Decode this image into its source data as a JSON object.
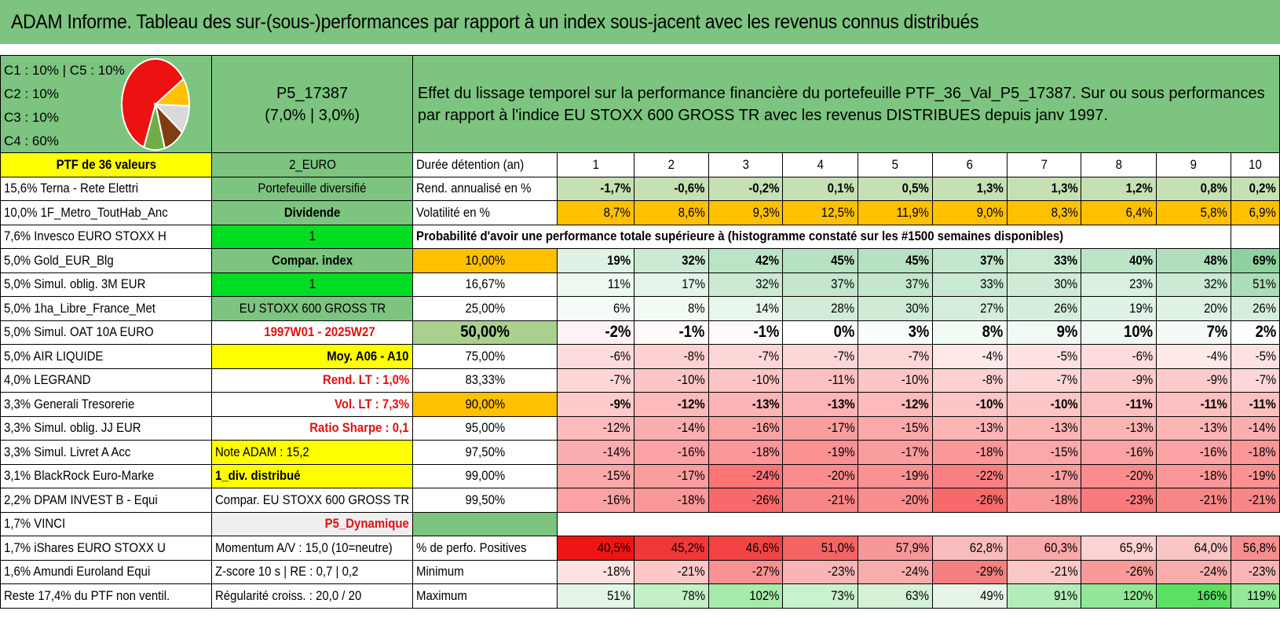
{
  "title": "ADAM Informe. Tableau des sur-(sous-)performances par rapport à un index sous-jacent avec les revenus connus distribués",
  "allocation": [
    "C1 : 10% | C5 : 10%",
    "C2 : 10%",
    "C3 : 10%",
    "C4 : 60%"
  ],
  "pie": [
    {
      "label": "C4",
      "value": 60,
      "color": "#ee1111"
    },
    {
      "label": "C1",
      "value": 10,
      "color": "#ffc000"
    },
    {
      "label": "C5",
      "value": 10,
      "color": "#d9d9d9"
    },
    {
      "label": "C2",
      "value": 10,
      "color": "#7f3d12"
    },
    {
      "label": "C3",
      "value": 10,
      "color": "#70ad47"
    }
  ],
  "portfolio": {
    "name": "P5_17387",
    "params": "(7,0% | 3,0%)"
  },
  "effet_text": "Effet du lissage temporel sur la performance financière du portefeuille PTF_36_Val_P5_17387. Sur ou sous performances par rapport à l'indice EU STOXX 600 GROSS TR avec les revenus DISTRIBUES depuis janv 1997.",
  "ptf_label": "PTF de 36 valeurs",
  "currency": "2_EURO",
  "duree_label": "Durée détention (an)",
  "years": [
    "1",
    "2",
    "3",
    "4",
    "5",
    "6",
    "7",
    "8",
    "9",
    "10"
  ],
  "holdings": [
    "15,6% Terna - Rete Elettri",
    "10,0% 1F_Metro_ToutHab_Anc",
    "7,6% Invesco EURO STOXX H",
    "5,0% Gold_EUR_Blg",
    "5,0% Simul. oblig. 3M EUR",
    "5,0% 1ha_Libre_France_Met",
    "5,0% Simul. OAT 10A EURO",
    "5,0% AIR LIQUIDE",
    "4,0% LEGRAND",
    "3,3% Generali Tresorerie",
    "3,3% Simul. oblig. JJ EUR",
    "3,3% Simul. Livret A Acc",
    "3,1% BlackRock Euro-Marke",
    "2,2% DPAM INVEST B - Equi",
    "1,7% VINCI",
    "1,7% iShares EURO STOXX U",
    "1,6% Amundi Euroland Equi",
    "Reste 17,4% du PTF non ventil."
  ],
  "info": [
    "Portefeuille diversifié",
    "Dividende",
    "1",
    "Compar. index",
    "1",
    "EU STOXX 600 GROSS TR",
    "1997W01 - 2025W27",
    "Moy. A06 - A10",
    "Rend. LT : 1,0%",
    "Vol. LT : 7,3%",
    "Ratio Sharpe : 0,1",
    "Note ADAM : 15,2",
    "1_div. distribué",
    "Compar. EU STOXX 600 GROSS TR",
    "P5_Dynamique",
    "Momentum A/V : 15,0 (10=neutre)",
    "Z-score 10 s | RE : 0,7 | 0,2",
    "Régularité croiss. : 20,0 / 20"
  ],
  "rend": {
    "label": "Rend. annualisé en %",
    "values": [
      "-1,7%",
      "-0,6%",
      "-0,2%",
      "0,1%",
      "0,5%",
      "1,3%",
      "1,3%",
      "1,2%",
      "0,8%",
      "0,2%"
    ]
  },
  "vol": {
    "label": "Volatilité en %",
    "values": [
      "8,7%",
      "8,6%",
      "9,3%",
      "12,5%",
      "11,9%",
      "9,0%",
      "8,3%",
      "6,4%",
      "5,8%",
      "6,9%"
    ]
  },
  "proba_title": "Probabilité d'avoir une performance totale supérieure à (histogramme constaté sur les #1500 semaines disponibles)",
  "quantiles": [
    {
      "p": "10,00%",
      "values": [
        "19%",
        "32%",
        "42%",
        "45%",
        "45%",
        "37%",
        "33%",
        "40%",
        "48%",
        "69%"
      ]
    },
    {
      "p": "16,67%",
      "values": [
        "11%",
        "17%",
        "32%",
        "37%",
        "37%",
        "33%",
        "30%",
        "23%",
        "32%",
        "51%"
      ]
    },
    {
      "p": "25,00%",
      "values": [
        "6%",
        "8%",
        "14%",
        "28%",
        "30%",
        "27%",
        "26%",
        "19%",
        "20%",
        "26%"
      ]
    },
    {
      "p": "50,00%",
      "values": [
        "-2%",
        "-1%",
        "-1%",
        "0%",
        "3%",
        "8%",
        "9%",
        "10%",
        "7%",
        "2%"
      ]
    },
    {
      "p": "75,00%",
      "values": [
        "-6%",
        "-8%",
        "-7%",
        "-7%",
        "-7%",
        "-4%",
        "-5%",
        "-6%",
        "-4%",
        "-5%"
      ]
    },
    {
      "p": "83,33%",
      "values": [
        "-7%",
        "-10%",
        "-10%",
        "-11%",
        "-10%",
        "-8%",
        "-7%",
        "-9%",
        "-9%",
        "-7%"
      ]
    },
    {
      "p": "90,00%",
      "values": [
        "-9%",
        "-12%",
        "-13%",
        "-13%",
        "-12%",
        "-10%",
        "-10%",
        "-11%",
        "-11%",
        "-11%"
      ]
    },
    {
      "p": "95,00%",
      "values": [
        "-12%",
        "-14%",
        "-16%",
        "-17%",
        "-15%",
        "-13%",
        "-13%",
        "-13%",
        "-13%",
        "-14%"
      ]
    },
    {
      "p": "97,50%",
      "values": [
        "-14%",
        "-16%",
        "-18%",
        "-19%",
        "-17%",
        "-18%",
        "-15%",
        "-16%",
        "-16%",
        "-18%"
      ]
    },
    {
      "p": "99,00%",
      "values": [
        "-15%",
        "-17%",
        "-24%",
        "-20%",
        "-19%",
        "-22%",
        "-17%",
        "-20%",
        "-18%",
        "-19%"
      ]
    },
    {
      "p": "99,50%",
      "values": [
        "-16%",
        "-18%",
        "-26%",
        "-21%",
        "-20%",
        "-26%",
        "-18%",
        "-23%",
        "-21%",
        "-21%"
      ]
    }
  ],
  "positives": {
    "label": "% de perfo. Positives",
    "values": [
      "40,5%",
      "45,2%",
      "46,6%",
      "51,0%",
      "57,9%",
      "62,8%",
      "60,3%",
      "65,9%",
      "64,0%",
      "56,8%"
    ]
  },
  "minimum": {
    "label": "Minimum",
    "values": [
      "-18%",
      "-21%",
      "-27%",
      "-23%",
      "-24%",
      "-29%",
      "-21%",
      "-26%",
      "-24%",
      "-23%"
    ]
  },
  "maximum": {
    "label": "Maximum",
    "values": [
      "51%",
      "78%",
      "102%",
      "73%",
      "63%",
      "49%",
      "91%",
      "120%",
      "166%",
      "119%"
    ]
  },
  "colors": {
    "title_bg": "#7cc47f",
    "positive_green": "#63be7b",
    "negative_red": "#f8696b",
    "highlight_yellow": "#ffff00",
    "highlight_orange": "#ffc000"
  }
}
